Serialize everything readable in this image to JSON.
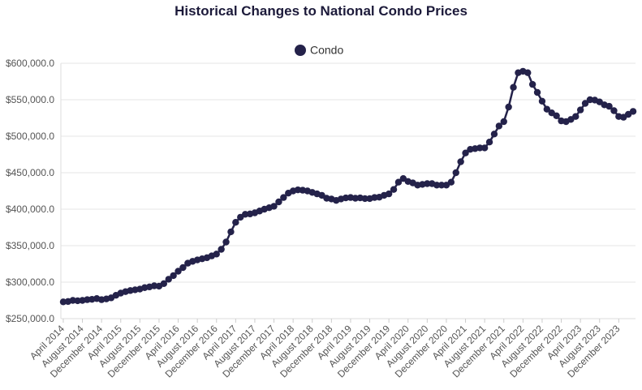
{
  "chart_data": {
    "type": "line",
    "title": "Historical Changes to National Condo Prices",
    "xlabel": "",
    "ylabel": "",
    "ylim": [
      250000,
      600000
    ],
    "y_ticks": [
      "$250,000.0",
      "$300,000.0",
      "$350,000.0",
      "$400,000.0",
      "$450,000.0",
      "$500,000.0",
      "$550,000.0",
      "$600,000.0"
    ],
    "y_tick_values": [
      250000,
      300000,
      350000,
      400000,
      450000,
      500000,
      550000,
      600000
    ],
    "x_tick_labels": [
      "April 2014",
      "August 2014",
      "December 2014",
      "April 2015",
      "August 2015",
      "December 2015",
      "April 2016",
      "August 2016",
      "December 2016",
      "April 2017",
      "August 2017",
      "December 2017",
      "April 2018",
      "August 2018",
      "December 2018",
      "April 2019",
      "August 2019",
      "December 2019",
      "April 2020",
      "August 2020",
      "December 2020",
      "April 2021",
      "August 2021",
      "December 2021",
      "April 2022",
      "August 2022",
      "December 2022",
      "April 2023",
      "August 2023",
      "December 2023"
    ],
    "x_start": "April 2014",
    "grid": true,
    "legend_position": "top-center",
    "series": [
      {
        "name": "Condo",
        "color": "#24224a",
        "values": [
          273000,
          273500,
          275000,
          274500,
          275000,
          276000,
          276500,
          277500,
          276000,
          277000,
          278500,
          282000,
          285000,
          287000,
          288500,
          289500,
          290500,
          292500,
          293500,
          295000,
          294500,
          298000,
          304000,
          309000,
          315000,
          320000,
          326000,
          328500,
          330500,
          332000,
          333500,
          336000,
          338500,
          345000,
          355000,
          369000,
          382000,
          389000,
          393000,
          393500,
          395000,
          397500,
          400000,
          402000,
          404000,
          410000,
          416000,
          422000,
          425000,
          426500,
          426000,
          425000,
          423000,
          421000,
          419000,
          415000,
          414000,
          412000,
          414000,
          415500,
          416000,
          415000,
          415500,
          414500,
          414500,
          416000,
          416500,
          419000,
          421000,
          427000,
          437000,
          442000,
          438000,
          436000,
          433000,
          434000,
          435000,
          435000,
          433000,
          433000,
          433000,
          437000,
          450000,
          465000,
          477000,
          482000,
          483000,
          484000,
          484000,
          492000,
          503000,
          514000,
          520000,
          540000,
          567000,
          587000,
          589000,
          587000,
          571000,
          560000,
          548000,
          537000,
          532000,
          528000,
          521000,
          520000,
          523000,
          527000,
          536000,
          545000,
          550000,
          549500,
          547000,
          543000,
          541000,
          535000,
          527000,
          526000,
          530000,
          534000
        ]
      }
    ]
  }
}
